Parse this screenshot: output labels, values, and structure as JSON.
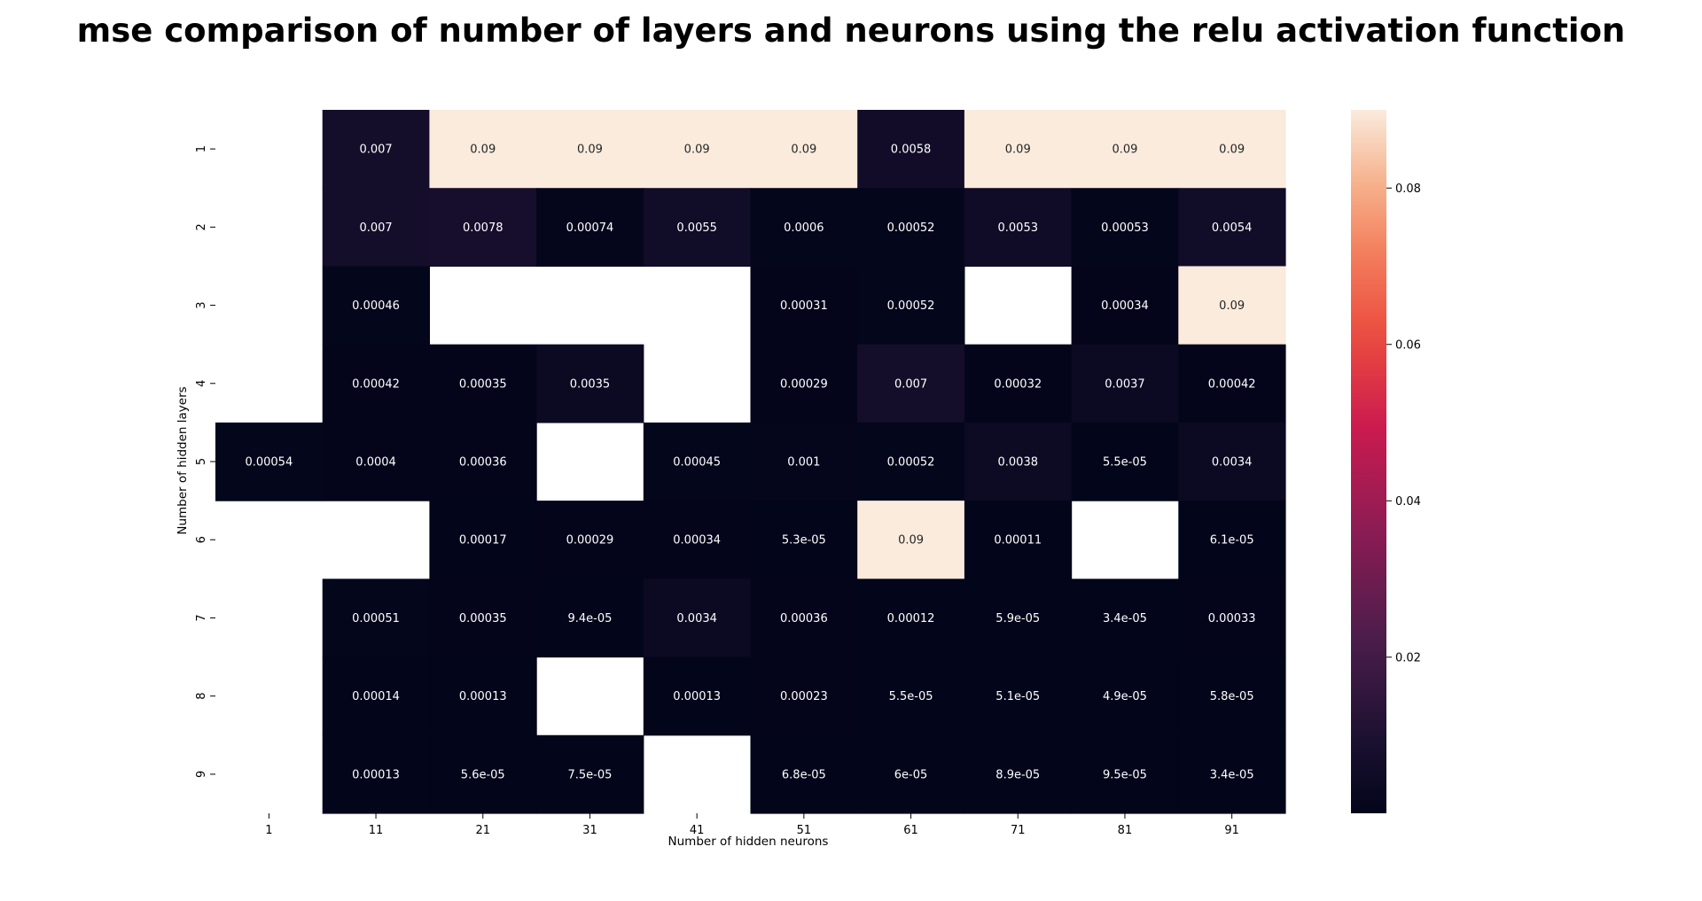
{
  "chart_data": {
    "type": "heatmap",
    "title": "mse comparison of number of layers and neurons using the relu activation function",
    "xlabel": "Number of hidden neurons",
    "ylabel": "Number of hidden layers",
    "x_categories": [
      "1",
      "11",
      "21",
      "31",
      "41",
      "51",
      "61",
      "71",
      "81",
      "91"
    ],
    "y_categories": [
      "1",
      "2",
      "3",
      "4",
      "5",
      "6",
      "7",
      "8",
      "9"
    ],
    "values": [
      [
        null,
        0.007,
        0.09,
        0.09,
        0.09,
        0.09,
        0.0058,
        0.09,
        0.09,
        0.09
      ],
      [
        null,
        0.007,
        0.0078,
        0.00074,
        0.0055,
        0.0006,
        0.00052,
        0.0053,
        0.00053,
        0.0054
      ],
      [
        null,
        0.00046,
        null,
        null,
        null,
        0.00031,
        0.00052,
        null,
        0.00034,
        0.09
      ],
      [
        null,
        0.00042,
        0.00035,
        0.0035,
        null,
        0.00029,
        0.007,
        0.00032,
        0.0037,
        0.00042
      ],
      [
        0.00054,
        0.0004,
        0.00036,
        null,
        0.00045,
        0.001,
        0.00052,
        0.0038,
        5.5e-05,
        0.0034
      ],
      [
        null,
        null,
        0.00017,
        0.00029,
        0.00034,
        5.3e-05,
        0.09,
        0.00011,
        null,
        6.1e-05
      ],
      [
        null,
        0.00051,
        0.00035,
        9.4e-05,
        0.0034,
        0.00036,
        0.00012,
        5.9e-05,
        3.4e-05,
        0.00033
      ],
      [
        null,
        0.00014,
        0.00013,
        null,
        0.00013,
        0.00023,
        5.5e-05,
        5.1e-05,
        4.9e-05,
        5.8e-05
      ],
      [
        null,
        0.00013,
        5.6e-05,
        7.5e-05,
        null,
        6.8e-05,
        6e-05,
        8.9e-05,
        9.5e-05,
        3.4e-05
      ]
    ],
    "annotations": [
      [
        "",
        "0.007",
        "0.09",
        "0.09",
        "0.09",
        "0.09",
        "0.0058",
        "0.09",
        "0.09",
        "0.09"
      ],
      [
        "",
        "0.007",
        "0.0078",
        "0.00074",
        "0.0055",
        "0.0006",
        "0.00052",
        "0.0053",
        "0.00053",
        "0.0054"
      ],
      [
        "",
        "0.00046",
        "",
        "",
        "",
        "0.00031",
        "0.00052",
        "",
        "0.00034",
        "0.09"
      ],
      [
        "",
        "0.00042",
        "0.00035",
        "0.0035",
        "",
        "0.00029",
        "0.007",
        "0.00032",
        "0.0037",
        "0.00042"
      ],
      [
        "0.00054",
        "0.0004",
        "0.00036",
        "",
        "0.00045",
        "0.001",
        "0.00052",
        "0.0038",
        "5.5e-05",
        "0.0034"
      ],
      [
        "",
        "",
        "0.00017",
        "0.00029",
        "0.00034",
        "5.3e-05",
        "0.09",
        "0.00011",
        "",
        "6.1e-05"
      ],
      [
        "",
        "0.00051",
        "0.00035",
        "9.4e-05",
        "0.0034",
        "0.00036",
        "0.00012",
        "5.9e-05",
        "3.4e-05",
        "0.00033"
      ],
      [
        "",
        "0.00014",
        "0.00013",
        "",
        "0.00013",
        "0.00023",
        "5.5e-05",
        "5.1e-05",
        "4.9e-05",
        "5.8e-05"
      ],
      [
        "",
        "0.00013",
        "5.6e-05",
        "7.5e-05",
        "",
        "6.8e-05",
        "6e-05",
        "8.9e-05",
        "9.5e-05",
        "3.4e-05"
      ]
    ],
    "colorscale": "rocket",
    "colorbar": {
      "range": [
        3.4e-05,
        0.09
      ],
      "ticks": [
        0.02,
        0.04,
        0.06,
        0.08
      ],
      "tick_labels": [
        "0.02",
        "0.04",
        "0.06",
        "0.08"
      ]
    },
    "missing_cells": "blank",
    "grid": false
  }
}
